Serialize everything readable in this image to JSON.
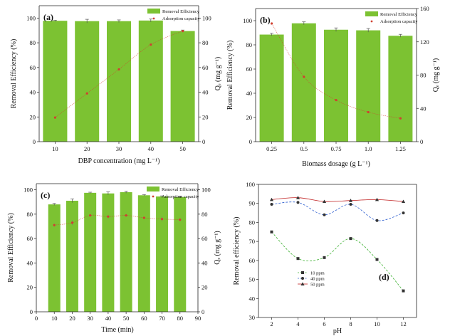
{
  "chart_data": [
    {
      "panel": "(a)",
      "type": "bar",
      "xlabel": "DBP concentration (mg L⁻¹)",
      "ylabel_left": "Removal Efficiency (%)",
      "ylabel_right": "Qₑ (mg g⁻¹)",
      "categories": [
        "10",
        "20",
        "30",
        "40",
        "50"
      ],
      "ylim_left": [
        0,
        110
      ],
      "yticks_left": [
        0,
        20,
        40,
        60,
        80,
        100
      ],
      "ylim_right": [
        0,
        110
      ],
      "yticks_right": [
        0,
        20,
        40,
        60,
        80,
        100
      ],
      "series": [
        {
          "name": "Removal Efficiency",
          "axis": "left",
          "kind": "bar",
          "values": [
            97.8,
            97.5,
            97.5,
            98.0,
            89.5
          ],
          "errors": [
            0.5,
            1.5,
            1.0,
            1.2,
            0.8
          ]
        },
        {
          "name": "Adsorption capacity",
          "axis": "right",
          "kind": "line",
          "values": [
            19.5,
            39.0,
            58.5,
            78.5,
            89.5
          ]
        }
      ],
      "legend_position": "top-right",
      "bar_color": "#7cc232",
      "line_color": "#d04030"
    },
    {
      "panel": "(b)",
      "type": "bar",
      "xlabel": "Biomass dosage (g L⁻¹)",
      "ylabel_left": "Removal Efficiency (%)",
      "ylabel_right": "Qₑ (mg g⁻¹)",
      "categories": [
        "0.25",
        "0.5",
        "0.75",
        "1.0",
        "1.25"
      ],
      "ylim_left": [
        0,
        110
      ],
      "yticks_left": [
        0,
        20,
        40,
        60,
        80,
        100
      ],
      "ylim_right": [
        0,
        160
      ],
      "yticks_right": [
        0,
        40,
        80,
        120,
        160
      ],
      "series": [
        {
          "name": "Removal Efficiency",
          "axis": "left",
          "kind": "bar",
          "values": [
            88.5,
            97.8,
            92.5,
            92.0,
            87.5
          ],
          "errors": [
            1.0,
            1.2,
            1.5,
            1.5,
            1.2
          ]
        },
        {
          "name": "Adsorption capacity",
          "axis": "right",
          "kind": "line",
          "values": [
            142,
            78,
            50,
            35.5,
            28
          ]
        }
      ],
      "legend_position": "top-right",
      "bar_color": "#7cc232",
      "line_color": "#d04030"
    },
    {
      "panel": "(c)",
      "type": "bar",
      "xlabel": "Time (min)",
      "ylabel_left": "Removal Efficiency (%)",
      "ylabel_right": "Qₑ (mg g⁻¹)",
      "categories": [
        "10",
        "20",
        "30",
        "40",
        "50",
        "60",
        "70",
        "80"
      ],
      "x_ticks": [
        "0",
        "10",
        "20",
        "30",
        "40",
        "50",
        "60",
        "70",
        "80",
        "90"
      ],
      "ylim_left": [
        0,
        105
      ],
      "yticks_left": [
        0,
        20,
        40,
        60,
        80,
        100
      ],
      "ylim_right": [
        0,
        105
      ],
      "yticks_right": [
        0,
        20,
        40,
        60,
        80,
        100
      ],
      "series": [
        {
          "name": "Removal Efficiency",
          "axis": "left",
          "kind": "bar",
          "values": [
            88.0,
            91.0,
            97.5,
            97.0,
            98.0,
            95.5,
            94.5,
            94.0
          ],
          "errors": [
            0.8,
            1.5,
            0.5,
            1.2,
            0.8,
            0.5,
            0.5,
            0.5
          ]
        },
        {
          "name": "Adsorption capacity",
          "axis": "right",
          "kind": "line",
          "values": [
            71,
            73,
            79,
            78,
            79,
            77,
            76,
            75.5
          ],
          "errors": [
            1.2,
            2.0,
            0.8,
            1.5,
            1.2,
            0.8,
            2.0,
            1.0
          ]
        }
      ],
      "legend_position": "top-right",
      "bar_color": "#7cc232",
      "line_color": "#d04030"
    },
    {
      "panel": "(d)",
      "type": "line",
      "xlabel": "pH",
      "ylabel": "Removal efficiency (%)",
      "x": [
        2,
        4,
        6,
        8,
        10,
        12
      ],
      "xlim": [
        1,
        13
      ],
      "ylim": [
        30,
        100
      ],
      "yticks": [
        30,
        40,
        50,
        60,
        70,
        80,
        90,
        100
      ],
      "series": [
        {
          "name": "10 ppm",
          "values": [
            75,
            61,
            61.5,
            71.5,
            60.5,
            44
          ],
          "color": "#333333",
          "line_color": "#3cb030",
          "marker": "square"
        },
        {
          "name": "40 ppm",
          "values": [
            89.5,
            90.5,
            84,
            89.5,
            81,
            85
          ],
          "color": "#333333",
          "line_color": "#3060d0",
          "marker": "circle"
        },
        {
          "name": "50 ppm",
          "values": [
            92,
            93,
            91,
            91.5,
            92,
            91
          ],
          "color": "#333333",
          "line_color": "#c02020",
          "marker": "triangle"
        }
      ],
      "legend_position": "bottom-left"
    }
  ]
}
